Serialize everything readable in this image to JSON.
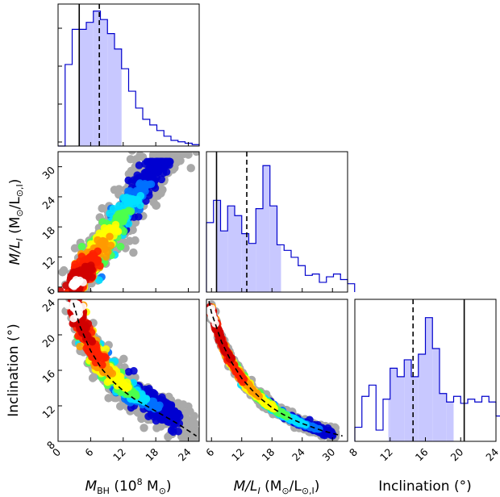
{
  "chart_data": {
    "type": "corner",
    "parameters": [
      {
        "id": "mbh",
        "label": "M_BH (10^8 M_⊙)",
        "range": [
          0,
          26
        ],
        "ticks": [
          "0",
          "6",
          "12",
          "18",
          "24"
        ]
      },
      {
        "id": "ml",
        "label": "M/L_I (M_⊙/L_⊙,I)",
        "range": [
          5,
          33
        ],
        "ticks": [
          "6",
          "12",
          "18",
          "24",
          "30"
        ]
      },
      {
        "id": "inc",
        "label": "Inclination (°)",
        "range": [
          8,
          24
        ],
        "ticks": [
          "8",
          "12",
          "16",
          "20",
          "24"
        ]
      }
    ],
    "axis_labels": {
      "mbh_x": [
        "M",
        "BH",
        " (10",
        "8",
        " M",
        "⊙",
        ")"
      ],
      "ml_x": [
        "M/L",
        "I",
        " (M",
        "⊙",
        "/L",
        "⊙,I",
        ")"
      ],
      "ml_y": [
        "M/L",
        "I",
        " (M",
        "⊙",
        "/L",
        "⊙,I",
        ")"
      ],
      "inc_x": "Inclination (°)",
      "inc_y": "Inclination (°)"
    },
    "histograms": [
      {
        "param": "mbh",
        "bin_width": 1.3,
        "start": 0,
        "counts": [
          0,
          0.58,
          0.83,
          0.83,
          0.88,
          0.96,
          0.9,
          0.8,
          0.69,
          0.55,
          0.39,
          0.27,
          0.19,
          0.15,
          0.11,
          0.07,
          0.04,
          0.03,
          0.02,
          0.01
        ],
        "shaded": [
          3.9,
          11.7
        ],
        "truth": 3.9,
        "median": 7.6
      },
      {
        "param": "ml",
        "bin_width": 1.4,
        "start": 5,
        "counts": [
          0.5,
          0.66,
          0.44,
          0.62,
          0.55,
          0.42,
          0.35,
          0.6,
          0.91,
          0.62,
          0.34,
          0.3,
          0.25,
          0.19,
          0.12,
          0.13,
          0.07,
          0.11,
          0.13,
          0.09,
          0.06
        ],
        "shaded": [
          7,
          19.8
        ],
        "truth": 7.0,
        "median": 13.0
      },
      {
        "param": "inc",
        "bin_width": 0.8,
        "start": 8,
        "counts": [
          0.1,
          0.32,
          0.4,
          0.08,
          0.3,
          0.52,
          0.46,
          0.58,
          0.46,
          0.62,
          0.88,
          0.66,
          0.34,
          0.28,
          0.32,
          0.27,
          0.3,
          0.28,
          0.32,
          0.28,
          0.18,
          0.08,
          0.02
        ],
        "shaded": [
          11.8,
          19.2
        ],
        "truth": 20.4,
        "median": 14.6
      }
    ],
    "truths": {
      "mbh": 3.9,
      "ml": 7.0,
      "inc": 20.4
    },
    "medians": {
      "mbh": 7.6,
      "ml": 13.0,
      "inc": 14.6
    },
    "density_colormap": [
      "#0000d0",
      "#0070ff",
      "#00e0ff",
      "#4cff4c",
      "#ffff00",
      "#ff9a00",
      "#ff2000",
      "#d00000",
      "#ffffff"
    ],
    "sample_color": "#a9a9a9",
    "histogram_color": "#0000cc",
    "shade_color": "#c8c8ff",
    "relations": [
      {
        "x": "mbh",
        "y": "inc",
        "style": "dashed",
        "points": [
          [
            2.8,
            23.6
          ],
          [
            4,
            21.0
          ],
          [
            6,
            18.2
          ],
          [
            8,
            16.2
          ],
          [
            10,
            14.8
          ],
          [
            12,
            13.7
          ],
          [
            14,
            12.8
          ],
          [
            16,
            12.1
          ],
          [
            18,
            11.4
          ],
          [
            20,
            10.7
          ],
          [
            22,
            10.0
          ],
          [
            24,
            9.2
          ],
          [
            25.5,
            8.6
          ]
        ]
      },
      {
        "x": "ml",
        "y": "inc",
        "style": "dashed",
        "points": [
          [
            5.5,
            23.8
          ],
          [
            6,
            22.5
          ],
          [
            8,
            19.2
          ],
          [
            10,
            16.9
          ],
          [
            12,
            15.1
          ],
          [
            14,
            13.8
          ],
          [
            16,
            12.7
          ],
          [
            18,
            11.8
          ],
          [
            20,
            11.1
          ],
          [
            22,
            10.5
          ],
          [
            24,
            10.0
          ],
          [
            26,
            9.6
          ],
          [
            28,
            9.2
          ],
          [
            30,
            8.9
          ],
          [
            32,
            8.6
          ]
        ]
      }
    ]
  }
}
